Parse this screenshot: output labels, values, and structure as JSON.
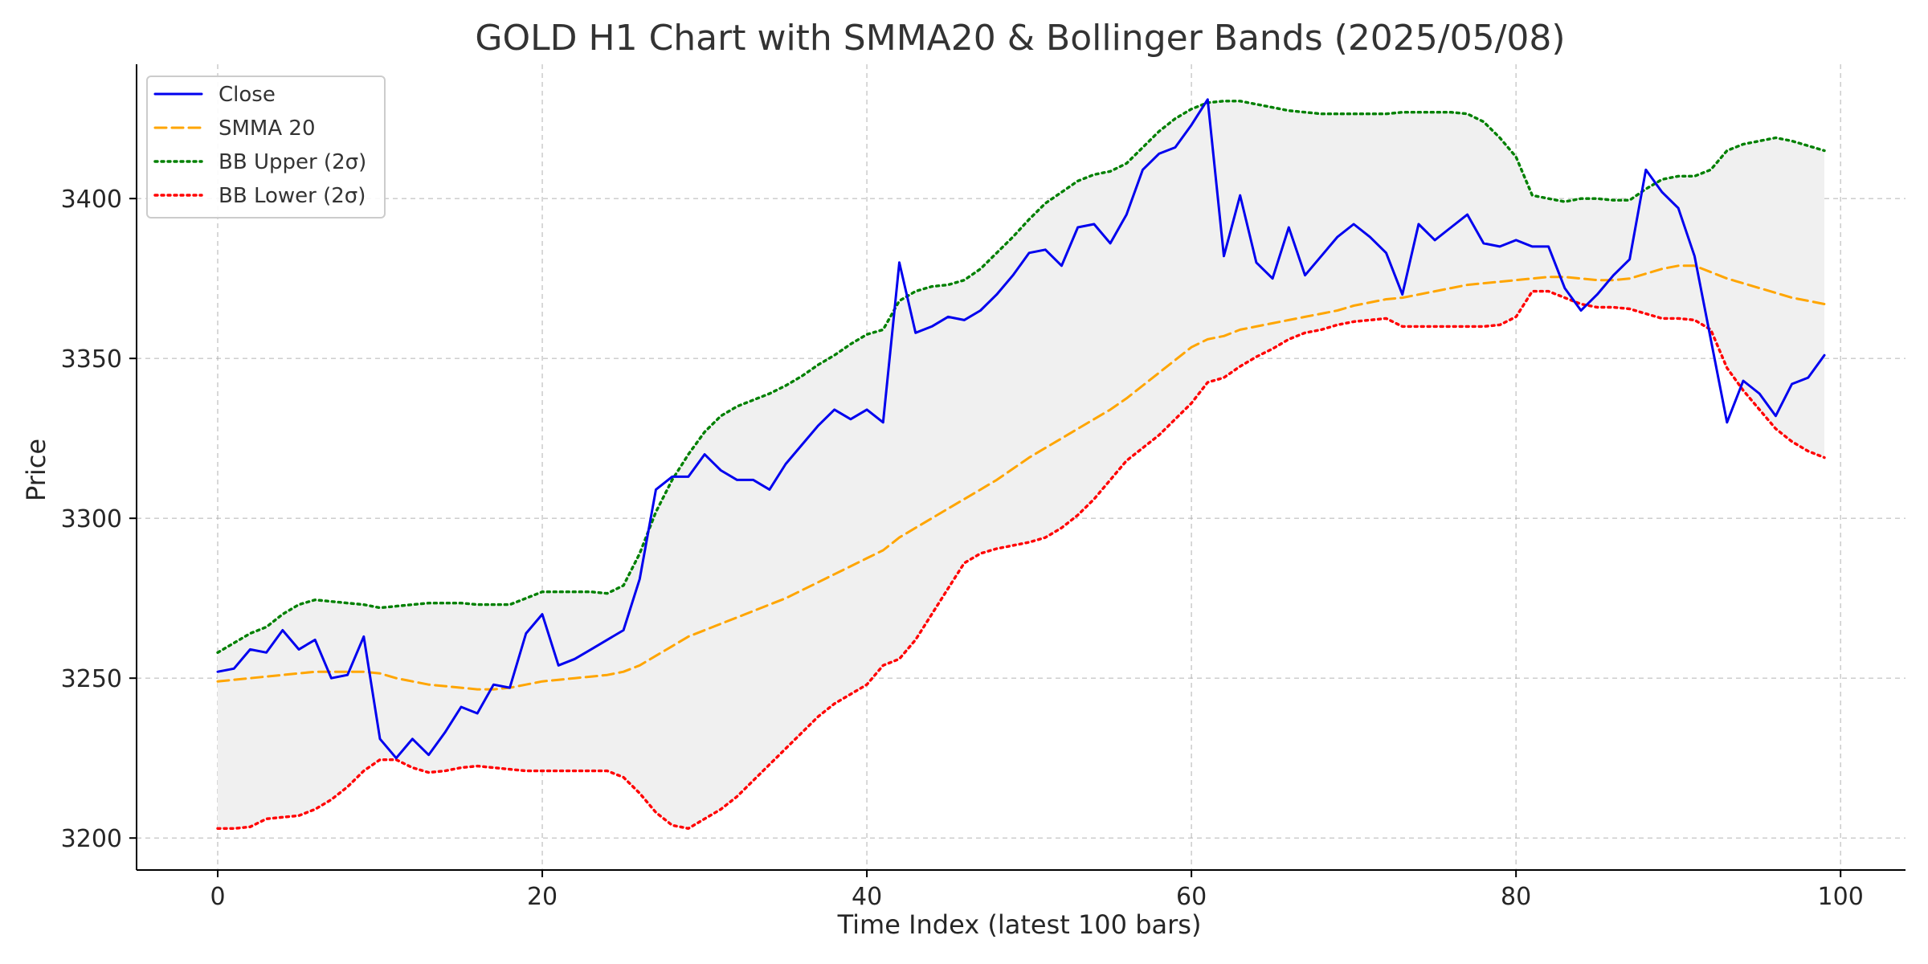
{
  "chart_data": {
    "type": "line",
    "title": "GOLD H1 Chart with SMMA20 & Bollinger Bands (2025/05/08)",
    "xlabel": "Time Index (latest 100 bars)",
    "ylabel": "Price",
    "xlim": [
      -5,
      104
    ],
    "ylim": [
      3190,
      3442
    ],
    "x_ticks": [
      0,
      20,
      40,
      60,
      80,
      100
    ],
    "y_ticks": [
      3200,
      3250,
      3300,
      3350,
      3400
    ],
    "grid": true,
    "legend_position": "top-left",
    "band_fill_color": "#f0f0f0",
    "series": [
      {
        "name": "Close",
        "color": "#0000ee",
        "style": "solid",
        "values": [
          3252,
          3253,
          3259,
          3258,
          3265,
          3259,
          3262,
          3250,
          3251,
          3263,
          3231,
          3225,
          3231,
          3226,
          3233,
          3241,
          3239,
          3248,
          3247,
          3264,
          3270,
          3254,
          3256,
          3259,
          3262,
          3265,
          3281,
          3309,
          3313,
          3313,
          3320,
          3315,
          3312,
          3312,
          3309,
          3317,
          3323,
          3329,
          3334,
          3331,
          3334,
          3330,
          3380,
          3358,
          3360,
          3363,
          3362,
          3365,
          3370,
          3376,
          3383,
          3384,
          3379,
          3391,
          3392,
          3386,
          3395,
          3409,
          3414,
          3416,
          3423,
          3431,
          3382,
          3401,
          3380,
          3375,
          3391,
          3376,
          3382,
          3388,
          3392,
          3388,
          3383,
          3370,
          3392,
          3387,
          3391,
          3395,
          3386,
          3385,
          3387,
          3385,
          3385,
          3372,
          3365,
          3370,
          3376,
          3381,
          3409,
          3402,
          3397,
          3382,
          3356,
          3330,
          3343,
          3339,
          3332,
          3342,
          3344,
          3351
        ]
      },
      {
        "name": "SMMA 20",
        "color": "#ffa500",
        "style": "dashed",
        "values": [
          3249,
          3249.5,
          3250,
          3250.5,
          3251,
          3251.5,
          3252,
          3252,
          3252,
          3252,
          3251.5,
          3250,
          3249,
          3248,
          3247.5,
          3247,
          3246.5,
          3246.5,
          3247,
          3248,
          3249,
          3249.5,
          3250,
          3250.5,
          3251,
          3252,
          3254,
          3257,
          3260,
          3263,
          3265,
          3267,
          3269,
          3271,
          3273,
          3275,
          3277.5,
          3280,
          3282.5,
          3285,
          3287.5,
          3290,
          3294,
          3297,
          3300,
          3303,
          3306,
          3309,
          3312,
          3315.5,
          3319,
          3322,
          3325,
          3328,
          3331,
          3334,
          3337.5,
          3341.5,
          3345.5,
          3349.5,
          3353.5,
          3356,
          3357,
          3359,
          3360,
          3361,
          3362,
          3363,
          3364,
          3365,
          3366.5,
          3367.5,
          3368.5,
          3369,
          3370,
          3371,
          3372,
          3373,
          3373.5,
          3374,
          3374.5,
          3375,
          3375.5,
          3375.5,
          3375,
          3374.5,
          3374.5,
          3375,
          3376.5,
          3378,
          3379,
          3379,
          3377,
          3375,
          3373.5,
          3372,
          3370.5,
          3369,
          3368,
          3367
        ]
      },
      {
        "name": "BB Upper (2σ)",
        "color": "#008000",
        "style": "dotted",
        "values": [
          3258,
          3261,
          3264,
          3266,
          3270,
          3273,
          3274.5,
          3274,
          3273.5,
          3273,
          3272,
          3272.5,
          3273,
          3273.5,
          3273.5,
          3273.5,
          3273,
          3273,
          3273,
          3275,
          3277,
          3277,
          3277,
          3277,
          3276.5,
          3279,
          3289,
          3302,
          3312,
          3320,
          3327,
          3332,
          3335,
          3337,
          3339,
          3341.5,
          3344.5,
          3348,
          3351,
          3354.5,
          3357.5,
          3359,
          3368,
          3371,
          3372.5,
          3373,
          3374.5,
          3378,
          3383,
          3388,
          3393.5,
          3398.5,
          3402,
          3405.5,
          3407.5,
          3408.5,
          3411,
          3416,
          3421,
          3425,
          3428,
          3430,
          3430.5,
          3430.5,
          3429.5,
          3428.5,
          3427.5,
          3427,
          3426.5,
          3426.5,
          3426.5,
          3426.5,
          3426.5,
          3427,
          3427,
          3427,
          3427,
          3426.5,
          3424,
          3419,
          3413,
          3401,
          3400,
          3399,
          3400,
          3400,
          3399.5,
          3399.5,
          3403,
          3406,
          3407,
          3407,
          3409,
          3415,
          3417,
          3418,
          3419,
          3418,
          3416.5,
          3415
        ]
      },
      {
        "name": "BB Lower (2σ)",
        "color": "#ff0000",
        "style": "dotted",
        "values": [
          3203,
          3203,
          3203.5,
          3206,
          3206.5,
          3207,
          3209,
          3212,
          3216,
          3221,
          3224.5,
          3224.5,
          3222,
          3220.5,
          3221,
          3222,
          3222.5,
          3222,
          3221.5,
          3221,
          3221,
          3221,
          3221,
          3221,
          3221,
          3219,
          3214,
          3208,
          3204,
          3203,
          3206,
          3209,
          3213,
          3218,
          3223,
          3228,
          3233,
          3238,
          3242,
          3245,
          3248,
          3254,
          3256,
          3262,
          3270,
          3278,
          3286,
          3289,
          3290.5,
          3291.5,
          3292.5,
          3294,
          3297,
          3301,
          3306,
          3312,
          3318,
          3322,
          3326,
          3331,
          3336,
          3342.5,
          3344,
          3347.5,
          3350.5,
          3353,
          3356,
          3358,
          3359,
          3360.5,
          3361.5,
          3362,
          3362.5,
          3360,
          3360,
          3360,
          3360,
          3360,
          3360,
          3360.5,
          3363,
          3371,
          3371,
          3369,
          3367,
          3366,
          3366,
          3365.5,
          3364,
          3362.5,
          3362.5,
          3362,
          3359,
          3347,
          3340,
          3334,
          3328,
          3324,
          3321,
          3319
        ]
      }
    ]
  }
}
